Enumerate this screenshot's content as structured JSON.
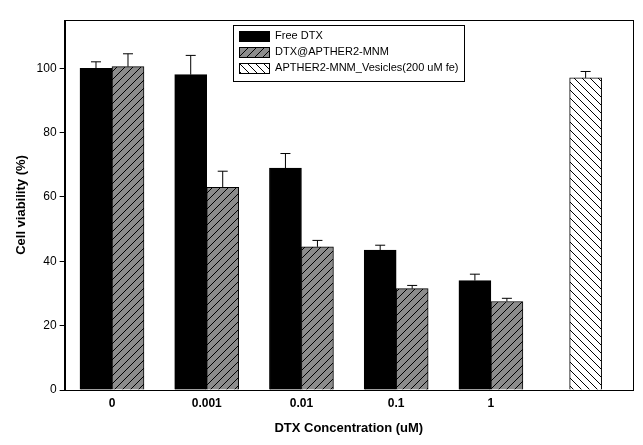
{
  "chart_data": {
    "type": "bar",
    "xlabel": "DTX Concentration (uM)",
    "ylabel": "Cell viability (%)",
    "categories": [
      "0",
      "0.001",
      "0.01",
      "0.1",
      "1",
      null
    ],
    "series": [
      {
        "name": "Free DTX",
        "color": "#000000",
        "values": [
          100,
          98,
          69,
          43.5,
          34,
          null
        ],
        "errors": [
          2,
          6,
          4.5,
          1.5,
          2,
          null
        ]
      },
      {
        "name": "DTX@APTHER2-MNM",
        "color": "#8c8c8c",
        "values": [
          100.5,
          63,
          44.5,
          31.5,
          27.5,
          null
        ],
        "errors": [
          4,
          5,
          2,
          1,
          1,
          null
        ]
      },
      {
        "name": "APTHER2-MNM_Vesicles(200 uM fe)",
        "color": "#ffffff",
        "values": [
          null,
          null,
          null,
          null,
          null,
          97
        ],
        "errors": [
          null,
          null,
          null,
          null,
          null,
          2
        ]
      }
    ],
    "ylim": [
      0,
      115
    ],
    "yticks": [
      0,
      20,
      40,
      60,
      80,
      100
    ],
    "grid": false,
    "legend": "upper center"
  }
}
